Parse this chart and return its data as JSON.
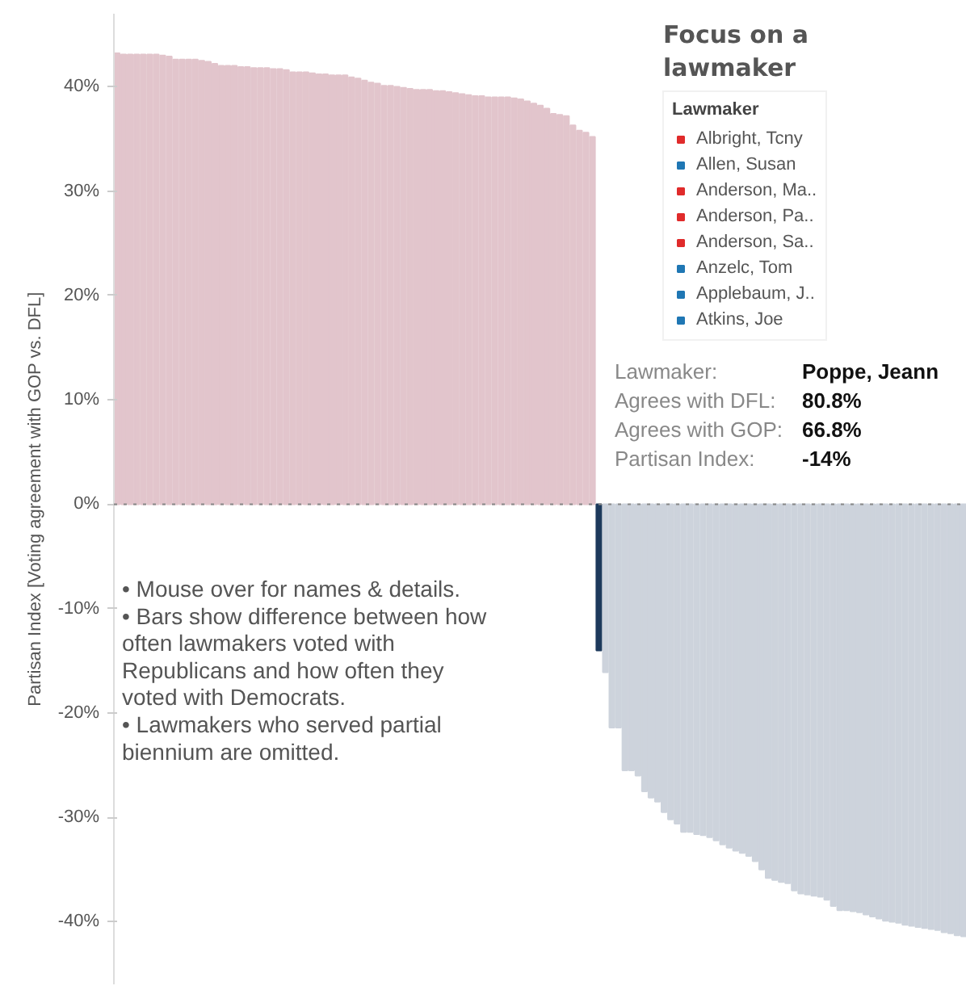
{
  "chart_data": [
    {
      "type": "bar",
      "ylabel": "Partisan Index [Voting agreement with GOP vs. DFL]",
      "categories": [
        null,
        null,
        null,
        null,
        null,
        null,
        null,
        null,
        null,
        null,
        null,
        null,
        null,
        null,
        null,
        null,
        null,
        null,
        null,
        null,
        null,
        null,
        null,
        null,
        null,
        null,
        null,
        null,
        null,
        null,
        null,
        null,
        null,
        null,
        null,
        null,
        null,
        null,
        null,
        null,
        null,
        null,
        null,
        null,
        null,
        null,
        null,
        null,
        null,
        null,
        null,
        null,
        null,
        null,
        null,
        null,
        null,
        null,
        null,
        null,
        null,
        null,
        null,
        null,
        null,
        null,
        null,
        null,
        null,
        null,
        null,
        null,
        null,
        null,
        null,
        null,
        null,
        null,
        null,
        null,
        null,
        null,
        null,
        null,
        null,
        null,
        null,
        null,
        null,
        null,
        null,
        null,
        null,
        null,
        null,
        null,
        null,
        null,
        null,
        null,
        null,
        null,
        null,
        null,
        null,
        null,
        null,
        null,
        null,
        null,
        null,
        null,
        null,
        null,
        null,
        null,
        null,
        null,
        null,
        null,
        null,
        null,
        null,
        null,
        null,
        null,
        null,
        null,
        null,
        null,
        null
      ],
      "values": [
        43.2,
        43.1,
        43.1,
        43.1,
        43.1,
        43.1,
        43.1,
        43.0,
        42.9,
        42.6,
        42.6,
        42.6,
        42.6,
        42.5,
        42.4,
        42.2,
        42.0,
        42.0,
        42.0,
        41.9,
        41.9,
        41.8,
        41.8,
        41.8,
        41.7,
        41.7,
        41.6,
        41.4,
        41.4,
        41.4,
        41.3,
        41.2,
        41.2,
        41.1,
        41.1,
        41.1,
        40.9,
        40.8,
        40.6,
        40.4,
        40.3,
        40.1,
        40.1,
        40.0,
        39.9,
        39.8,
        39.7,
        39.7,
        39.7,
        39.6,
        39.6,
        39.5,
        39.4,
        39.3,
        39.2,
        39.1,
        39.1,
        39.0,
        39.0,
        39.0,
        39.0,
        38.9,
        38.8,
        38.6,
        38.4,
        38.2,
        37.9,
        37.4,
        37.3,
        37.2,
        36.3,
        35.8,
        35.6,
        35.2,
        -14,
        -16.1,
        -21.4,
        -21.4,
        -25.5,
        -25.5,
        -26.0,
        -27.5,
        -28.1,
        -28.5,
        -29.5,
        -30.2,
        -30.6,
        -31.4,
        -31.4,
        -31.6,
        -31.7,
        -31.9,
        -32.2,
        -32.6,
        -32.9,
        -33.2,
        -33.4,
        -33.7,
        -34.2,
        -35.0,
        -35.8,
        -36.0,
        -36.2,
        -36.3,
        -37.0,
        -37.3,
        -37.4,
        -37.5,
        -37.6,
        -37.9,
        -38.5,
        -38.9,
        -38.9,
        -39.0,
        -39.1,
        -39.3,
        -39.5,
        -39.7,
        -39.9,
        -40.0,
        -40.1,
        -40.3,
        -40.4,
        -40.5,
        -40.6,
        -40.7,
        -40.8,
        -41.0,
        -41.1,
        -41.3,
        -41.4
      ],
      "colors": [
        "#e2c5cc",
        "#e2c5cc",
        "#e2c5cc",
        "#e2c5cc",
        "#e2c5cc",
        "#e2c5cc",
        "#e2c5cc",
        "#e2c5cc",
        "#e2c5cc",
        "#e2c5cc",
        "#e2c5cc",
        "#e2c5cc",
        "#e2c5cc",
        "#e2c5cc",
        "#e2c5cc",
        "#e2c5cc",
        "#e2c5cc",
        "#e2c5cc",
        "#e2c5cc",
        "#e2c5cc",
        "#e2c5cc",
        "#e2c5cc",
        "#e2c5cc",
        "#e2c5cc",
        "#e2c5cc",
        "#e2c5cc",
        "#e2c5cc",
        "#e2c5cc",
        "#e2c5cc",
        "#e2c5cc",
        "#e2c5cc",
        "#e2c5cc",
        "#e2c5cc",
        "#e2c5cc",
        "#e2c5cc",
        "#e2c5cc",
        "#e2c5cc",
        "#e2c5cc",
        "#e2c5cc",
        "#e2c5cc",
        "#e2c5cc",
        "#e2c5cc",
        "#e2c5cc",
        "#e2c5cc",
        "#e2c5cc",
        "#e2c5cc",
        "#e2c5cc",
        "#e2c5cc",
        "#e2c5cc",
        "#e2c5cc",
        "#e2c5cc",
        "#e2c5cc",
        "#e2c5cc",
        "#e2c5cc",
        "#e2c5cc",
        "#e2c5cc",
        "#e2c5cc",
        "#e2c5cc",
        "#e2c5cc",
        "#e2c5cc",
        "#e2c5cc",
        "#e2c5cc",
        "#e2c5cc",
        "#e2c5cc",
        "#e2c5cc",
        "#e2c5cc",
        "#e2c5cc",
        "#e2c5cc",
        "#e2c5cc",
        "#e2c5cc",
        "#e2c5cc",
        "#e2c5cc",
        "#e2c5cc",
        "#e2c5cc",
        "#1e3a5c",
        "#cdd3dc",
        "#cdd3dc",
        "#cdd3dc",
        "#cdd3dc",
        "#cdd3dc",
        "#cdd3dc",
        "#cdd3dc",
        "#cdd3dc",
        "#cdd3dc",
        "#cdd3dc",
        "#cdd3dc",
        "#cdd3dc",
        "#cdd3dc",
        "#cdd3dc",
        "#cdd3dc",
        "#cdd3dc",
        "#cdd3dc",
        "#cdd3dc",
        "#cdd3dc",
        "#cdd3dc",
        "#cdd3dc",
        "#cdd3dc",
        "#cdd3dc",
        "#cdd3dc",
        "#cdd3dc",
        "#cdd3dc",
        "#cdd3dc",
        "#cdd3dc",
        "#cdd3dc",
        "#cdd3dc",
        "#cdd3dc",
        "#cdd3dc",
        "#cdd3dc",
        "#cdd3dc",
        "#cdd3dc",
        "#cdd3dc",
        "#cdd3dc",
        "#cdd3dc",
        "#cdd3dc",
        "#cdd3dc",
        "#cdd3dc",
        "#cdd3dc",
        "#cdd3dc",
        "#cdd3dc",
        "#cdd3dc",
        "#cdd3dc",
        "#cdd3dc",
        "#cdd3dc",
        "#cdd3dc",
        "#cdd3dc",
        "#cdd3dc",
        "#cdd3dc",
        "#cdd3dc",
        "#cdd3dc",
        "#cdd3dc",
        "#cdd3dc"
      ],
      "ylim": [
        -46,
        47
      ],
      "yticks": [
        {
          "value": -40,
          "label": "-40%"
        },
        {
          "value": -30,
          "label": "-30%"
        },
        {
          "value": -20,
          "label": "-20%"
        },
        {
          "value": -10,
          "label": "-10%"
        },
        {
          "value": 0,
          "label": "0%"
        },
        {
          "value": 10,
          "label": "10%"
        },
        {
          "value": 20,
          "label": "20%"
        },
        {
          "value": 30,
          "label": "30%"
        },
        {
          "value": 40,
          "label": "40%"
        }
      ],
      "ref_lines": [
        {
          "axis": "y",
          "value": 0,
          "color": "#888888",
          "line_style": "dotted"
        }
      ],
      "grid": false,
      "annotations": [
        "• Mouse over for names & details.\n• Bars show difference between how\noften lawmakers voted with\nRepublicans and how often they\nvoted with Democrats.\n• Lawmakers who served partial\nbiennium are omitted.",
        "Lawmaker: Poppe, Jeann",
        "Agrees with DFL: 80.8%",
        "Agrees with GOP: 66.8%",
        "Partisan Index: -14%"
      ]
    },
    {
      "type": "other",
      "title": "Focus on a lawmaker",
      "legend_title": "Lawmaker",
      "categories": [
        "Albright, Tcny",
        "Allen, Susan",
        "Anderson, Ma..",
        "Anderson, Pa..",
        "Anderson, Sa..",
        "Anzelc, Tom",
        "Applebaum, J..",
        "Atkins, Joe"
      ],
      "colors": [
        "#e02b2b",
        "#1f77b4",
        "#e02b2b",
        "#e02b2b",
        "#e02b2b",
        "#1f77b4",
        "#1f77b4",
        "#1f77b4"
      ]
    }
  ]
}
